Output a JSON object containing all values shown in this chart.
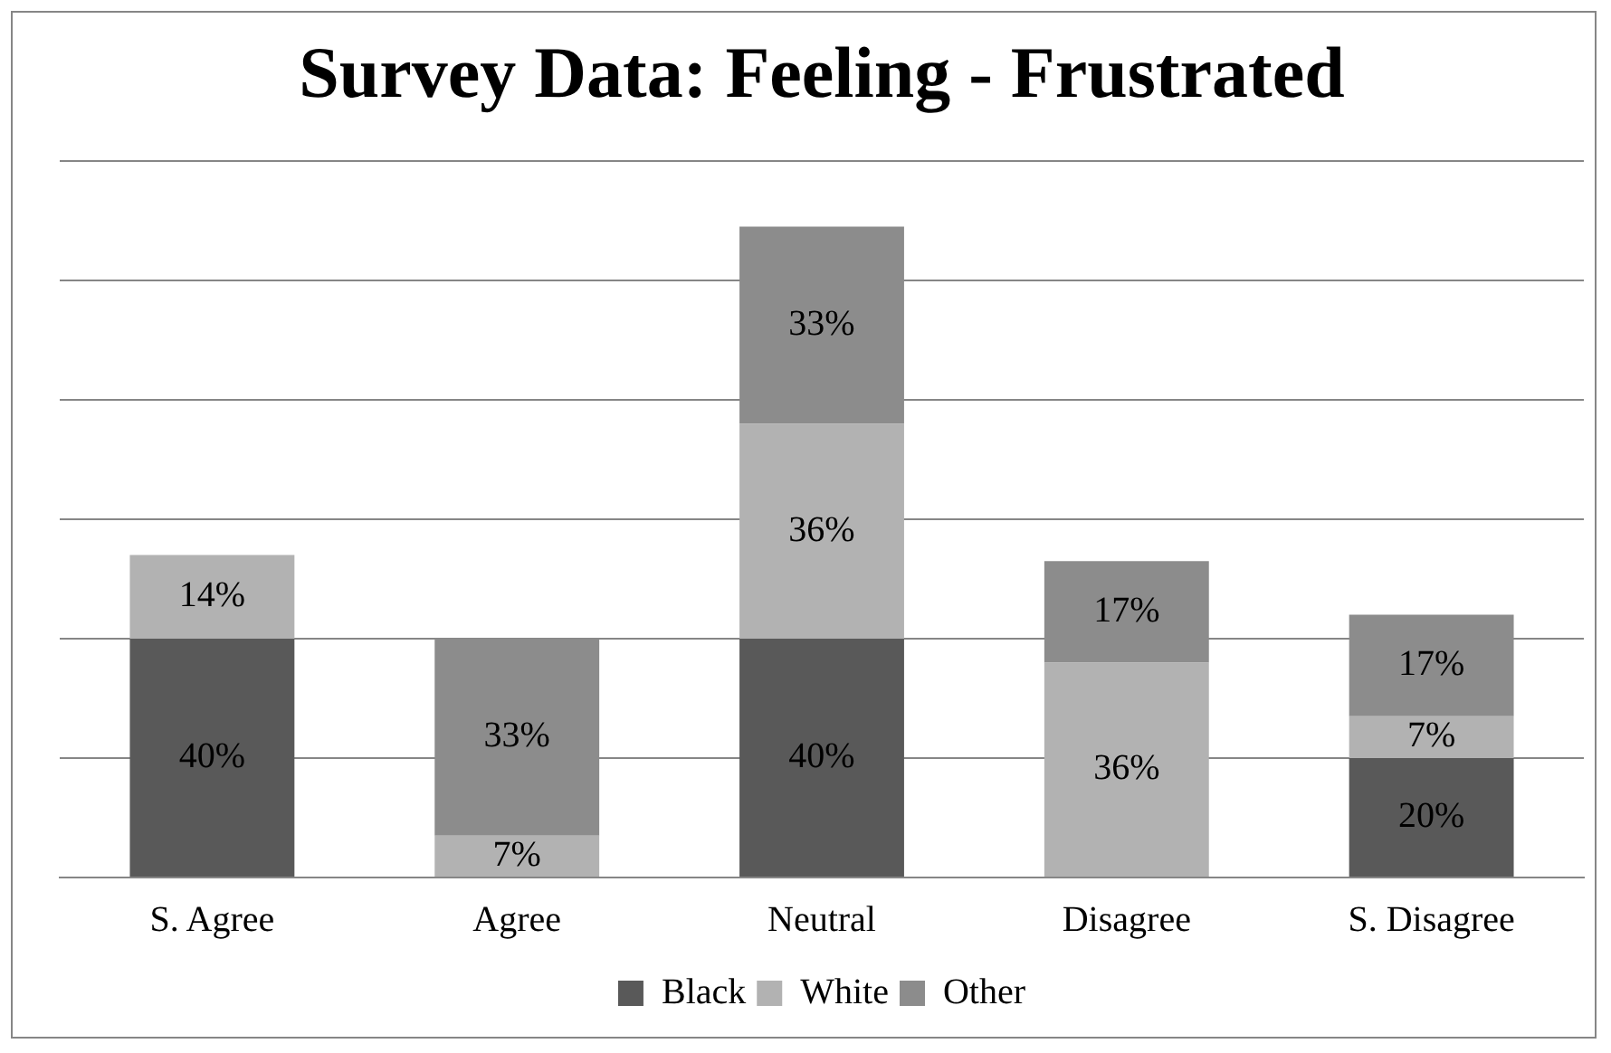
{
  "chart_data": {
    "type": "bar",
    "title": "Survey Data: Feeling - Frustrated",
    "categories": [
      "S. Agree",
      "Agree",
      "Neutral",
      "Disagree",
      "S. Disagree"
    ],
    "stacked": true,
    "series": [
      {
        "name": "Black",
        "color": "#595959",
        "values": [
          40,
          0,
          40,
          0,
          20
        ],
        "value_labels": [
          "40%",
          null,
          "40%",
          null,
          "20%"
        ]
      },
      {
        "name": "White",
        "color": "#b2b2b2",
        "values": [
          14,
          7,
          36,
          36,
          7
        ],
        "value_labels": [
          "14%",
          "7%",
          "36%",
          "36%",
          "7%"
        ]
      },
      {
        "name": "Other",
        "color": "#8c8c8c",
        "values": [
          0,
          33,
          33,
          17,
          17
        ],
        "value_labels": [
          null,
          "33%",
          "33%",
          "17%",
          "17%"
        ]
      }
    ],
    "ylim": [
      0,
      120
    ],
    "yticks": [
      {
        "value": 0,
        "label": null
      },
      {
        "value": 20,
        "label": null
      },
      {
        "value": 40,
        "label": null
      },
      {
        "value": 60,
        "label": null
      },
      {
        "value": 80,
        "label": null
      },
      {
        "value": 100,
        "label": null
      },
      {
        "value": 120,
        "label": null
      }
    ],
    "tick_labels": "x",
    "grid": "y",
    "legend": "bottom"
  }
}
